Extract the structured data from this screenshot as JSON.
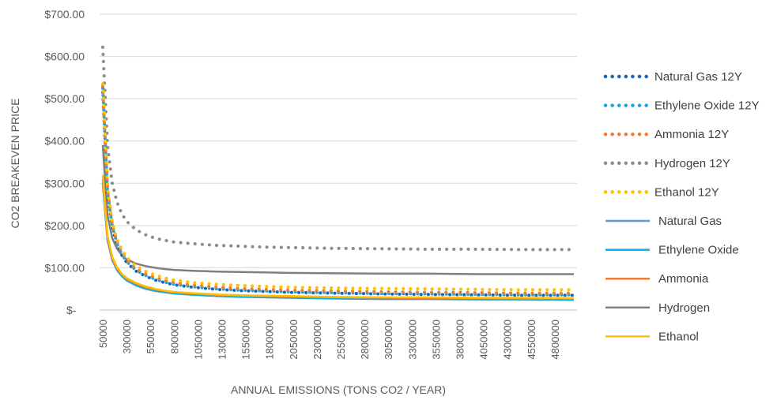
{
  "chart_data": {
    "type": "line",
    "title": "",
    "xlabel": "ANNUAL EMISSIONS (TONS CO2 / YEAR)",
    "ylabel": "CO2 BREAKEVEN PRICE",
    "xlim": [
      50000,
      5000000
    ],
    "ylim": [
      0,
      700
    ],
    "grid": "horizontal",
    "legend_position": "right",
    "y_tick_labels": [
      "$-",
      "$100.00",
      "$200.00",
      "$300.00",
      "$400.00",
      "$500.00",
      "$600.00",
      "$700.00"
    ],
    "y_ticks": [
      0,
      100,
      200,
      300,
      400,
      500,
      600,
      700
    ],
    "x_tick_labels": [
      "50000",
      "300000",
      "550000",
      "800000",
      "1050000",
      "1300000",
      "1550000",
      "1800000",
      "2050000",
      "2300000",
      "2550000",
      "2800000",
      "3050000",
      "3300000",
      "3550000",
      "3800000",
      "4050000",
      "4300000",
      "4550000",
      "4800000"
    ],
    "x_ticks": [
      50000,
      300000,
      550000,
      800000,
      1050000,
      1300000,
      1550000,
      1800000,
      2050000,
      2300000,
      2550000,
      2800000,
      3050000,
      3300000,
      3550000,
      3800000,
      4050000,
      4300000,
      4550000,
      4800000
    ],
    "x": [
      50000,
      100000,
      150000,
      200000,
      250000,
      300000,
      400000,
      500000,
      600000,
      700000,
      800000,
      1000000,
      1250000,
      1500000,
      1750000,
      2000000,
      2500000,
      3000000,
      3500000,
      4000000,
      4500000,
      5000000
    ],
    "series": [
      {
        "name": "Natural Gas 12Y",
        "style": "dotted",
        "color": "#1f63b4",
        "values": [
          515,
          275,
          195,
          155,
          130,
          113,
          92,
          80,
          71,
          65,
          60,
          54,
          49,
          46,
          44,
          42,
          40,
          38,
          37,
          36,
          35,
          35
        ]
      },
      {
        "name": "Ethylene Oxide 12Y",
        "style": "dotted",
        "color": "#19a7e3",
        "values": [
          525,
          280,
          198,
          157,
          132,
          115,
          94,
          82,
          73,
          66,
          61,
          55,
          50,
          47,
          45,
          43,
          41,
          39,
          38,
          37,
          36,
          36
        ]
      },
      {
        "name": "Ammonia 12Y",
        "style": "dotted",
        "color": "#ed7d31",
        "values": [
          530,
          285,
          202,
          161,
          136,
          119,
          98,
          86,
          77,
          70,
          65,
          59,
          54,
          51,
          49,
          47,
          45,
          43,
          42,
          41,
          40,
          40
        ]
      },
      {
        "name": "Hydrogen 12Y",
        "style": "dotted",
        "color": "#8c8c8c",
        "values": [
          622,
          390,
          300,
          255,
          228,
          210,
          190,
          178,
          170,
          165,
          161,
          157,
          153,
          151,
          149,
          148,
          146,
          145,
          144,
          144,
          143,
          143
        ]
      },
      {
        "name": "Ethanol 12Y",
        "style": "dotted",
        "color": "#ffc000",
        "values": [
          535,
          290,
          207,
          166,
          142,
          125,
          104,
          92,
          83,
          76,
          71,
          65,
          61,
          58,
          56,
          54,
          52,
          51,
          50,
          49,
          48,
          48
        ]
      },
      {
        "name": "Natural Gas",
        "style": "solid",
        "color": "#5b9bd5",
        "values": [
          300,
          165,
          118,
          94,
          80,
          70,
          58,
          50,
          45,
          42,
          39,
          36,
          33,
          31,
          30,
          29,
          27,
          26,
          26,
          25,
          25,
          24
        ]
      },
      {
        "name": "Ethylene Oxide",
        "style": "solid",
        "color": "#00b0f0",
        "values": [
          305,
          168,
          120,
          96,
          82,
          72,
          60,
          52,
          47,
          43,
          40,
          37,
          34,
          32,
          31,
          30,
          28,
          27,
          27,
          26,
          26,
          25
        ]
      },
      {
        "name": "Ammonia",
        "style": "solid",
        "color": "#ed7d31",
        "values": [
          310,
          171,
          122,
          98,
          84,
          74,
          62,
          54,
          49,
          45,
          42,
          39,
          36,
          34,
          33,
          32,
          30,
          29,
          28,
          28,
          27,
          27
        ]
      },
      {
        "name": "Hydrogen",
        "style": "solid",
        "color": "#7f7f7f",
        "values": [
          390,
          225,
          170,
          145,
          130,
          120,
          110,
          104,
          100,
          97,
          95,
          93,
          91,
          90,
          89,
          88,
          87,
          86,
          86,
          85,
          85,
          85
        ]
      },
      {
        "name": "Ethanol",
        "style": "solid",
        "color": "#ffc000",
        "values": [
          320,
          176,
          126,
          101,
          86,
          76,
          64,
          56,
          50,
          46,
          43,
          40,
          37,
          35,
          34,
          33,
          31,
          30,
          30,
          29,
          29,
          28
        ]
      }
    ]
  }
}
